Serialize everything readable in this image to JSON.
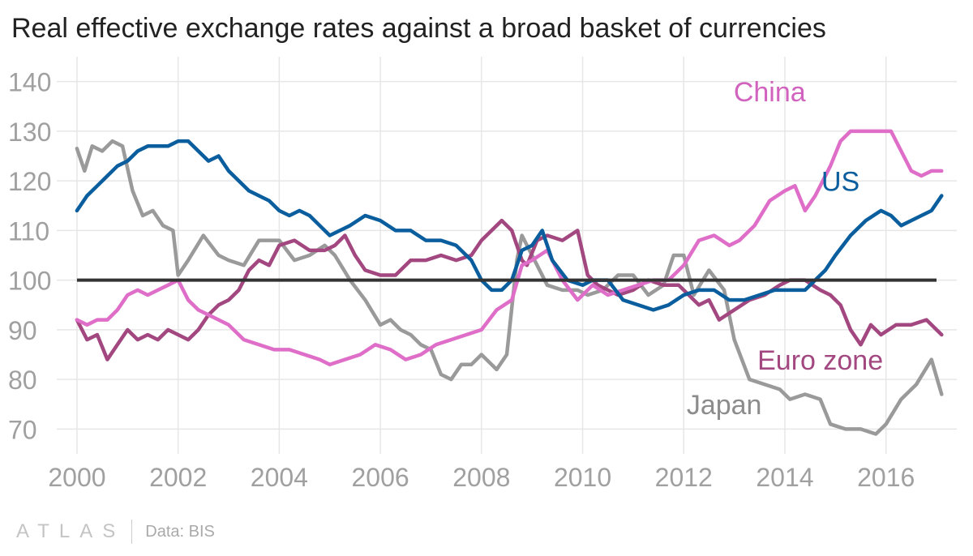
{
  "title": "Real effective exchange rates against a broad basket of currencies",
  "footer": {
    "brand": "ATLAS",
    "source": "Data: BIS"
  },
  "chart_data": {
    "type": "line",
    "title": "Real effective exchange rates against a broad basket of currencies",
    "xlabel": "",
    "ylabel": "",
    "xlim": [
      1999.6,
      2017.4
    ],
    "ylim": [
      65,
      145
    ],
    "x_ticks": [
      2000,
      2002,
      2004,
      2006,
      2008,
      2010,
      2012,
      2014,
      2016
    ],
    "x_tick_labels": [
      "2000",
      "2002",
      "2004",
      "2006",
      "2008",
      "2010",
      "2012",
      "2014",
      "2016"
    ],
    "y_ticks": [
      70,
      80,
      90,
      100,
      110,
      120,
      130,
      140
    ],
    "y_tick_labels": [
      "70",
      "80",
      "90",
      "100",
      "110",
      "120",
      "130",
      "140"
    ],
    "grid": true,
    "reference_line": {
      "y": 100,
      "color": "#333333"
    },
    "series": [
      {
        "name": "Japan",
        "label": "Japan",
        "color": "#9a9a9a",
        "label_color": "#8c8c8c",
        "x": [
          2000.0,
          2000.15,
          2000.3,
          2000.5,
          2000.7,
          2000.9,
          2001.1,
          2001.3,
          2001.5,
          2001.7,
          2001.9,
          2002.0,
          2002.2,
          2002.5,
          2002.8,
          2003.0,
          2003.3,
          2003.6,
          2003.9,
          2004.0,
          2004.3,
          2004.6,
          2004.9,
          2005.1,
          2005.4,
          2005.7,
          2006.0,
          2006.2,
          2006.4,
          2006.6,
          2006.8,
          2007.0,
          2007.2,
          2007.4,
          2007.6,
          2007.8,
          2008.0,
          2008.3,
          2008.5,
          2008.7,
          2008.8,
          2009.0,
          2009.3,
          2009.6,
          2009.9,
          2010.1,
          2010.4,
          2010.7,
          2011.0,
          2011.3,
          2011.6,
          2011.8,
          2012.0,
          2012.2,
          2012.5,
          2012.8,
          2013.0,
          2013.3,
          2013.6,
          2013.9,
          2014.1,
          2014.4,
          2014.7,
          2014.9,
          2015.2,
          2015.5,
          2015.8,
          2016.0,
          2016.3,
          2016.6,
          2016.9,
          2017.1
        ],
        "y": [
          126.5,
          122,
          127,
          126,
          128,
          127,
          118,
          113,
          114,
          111,
          110,
          101,
          104,
          109,
          105,
          104,
          103,
          108,
          108,
          108,
          104,
          105,
          107,
          105,
          100,
          96,
          91,
          92,
          90,
          89,
          87,
          86,
          81,
          80,
          83,
          83,
          85,
          82,
          85,
          104,
          109,
          105,
          99,
          98,
          98,
          97,
          98,
          101,
          101,
          97,
          99,
          105,
          105,
          97,
          102,
          98,
          88,
          80,
          79,
          78,
          76,
          77,
          76,
          71,
          70,
          70,
          69,
          71,
          76,
          79,
          84,
          77
        ]
      },
      {
        "name": "Euro zone",
        "label": "Euro zone",
        "color": "#a2477f",
        "label_color": "#a2477f",
        "x": [
          2000.0,
          2000.2,
          2000.4,
          2000.6,
          2000.8,
          2001.0,
          2001.2,
          2001.4,
          2001.6,
          2001.8,
          2002.0,
          2002.2,
          2002.4,
          2002.6,
          2002.8,
          2003.0,
          2003.2,
          2003.4,
          2003.6,
          2003.8,
          2004.0,
          2004.3,
          2004.6,
          2004.9,
          2005.1,
          2005.3,
          2005.5,
          2005.7,
          2006.0,
          2006.3,
          2006.6,
          2006.9,
          2007.2,
          2007.5,
          2007.8,
          2008.0,
          2008.2,
          2008.4,
          2008.6,
          2008.8,
          2008.9,
          2009.1,
          2009.3,
          2009.6,
          2009.9,
          2010.1,
          2010.3,
          2010.5,
          2010.7,
          2011.0,
          2011.3,
          2011.6,
          2011.9,
          2012.1,
          2012.3,
          2012.5,
          2012.7,
          2013.0,
          2013.3,
          2013.6,
          2013.9,
          2014.1,
          2014.4,
          2014.7,
          2014.9,
          2015.1,
          2015.3,
          2015.5,
          2015.7,
          2015.9,
          2016.2,
          2016.5,
          2016.8,
          2017.1
        ],
        "y": [
          92,
          88,
          89,
          84,
          87,
          90,
          88,
          89,
          88,
          90,
          89,
          88,
          90,
          93,
          95,
          96,
          98,
          102,
          104,
          103,
          107,
          108,
          106,
          106,
          107,
          109,
          105,
          102,
          101,
          101,
          104,
          104,
          105,
          104,
          105,
          108,
          110,
          112,
          110,
          104,
          103,
          108,
          109,
          108,
          110,
          101,
          99,
          98,
          97,
          98,
          100,
          99,
          99,
          97,
          95,
          96,
          92,
          94,
          96,
          97,
          99,
          100,
          100,
          98,
          97,
          95,
          90,
          87,
          91,
          89,
          91,
          91,
          92,
          89
        ]
      },
      {
        "name": "China",
        "label": "China",
        "color": "#de6ec8",
        "label_color": "#d163bf",
        "x": [
          2000.0,
          2000.2,
          2000.4,
          2000.6,
          2000.8,
          2001.0,
          2001.2,
          2001.4,
          2001.6,
          2001.8,
          2002.0,
          2002.2,
          2002.4,
          2002.6,
          2002.8,
          2003.0,
          2003.3,
          2003.6,
          2003.9,
          2004.2,
          2004.5,
          2004.8,
          2005.0,
          2005.3,
          2005.6,
          2005.9,
          2006.2,
          2006.5,
          2006.8,
          2007.1,
          2007.4,
          2007.7,
          2008.0,
          2008.3,
          2008.6,
          2008.8,
          2009.0,
          2009.3,
          2009.6,
          2009.9,
          2010.2,
          2010.5,
          2010.8,
          2011.1,
          2011.4,
          2011.7,
          2012.0,
          2012.3,
          2012.6,
          2012.9,
          2013.1,
          2013.4,
          2013.7,
          2014.0,
          2014.2,
          2014.4,
          2014.6,
          2014.9,
          2015.1,
          2015.3,
          2015.6,
          2015.9,
          2016.1,
          2016.3,
          2016.5,
          2016.7,
          2016.9,
          2017.1
        ],
        "y": [
          92,
          91,
          92,
          92,
          94,
          97,
          98,
          97,
          98,
          99,
          100,
          96,
          94,
          93,
          92,
          91,
          88,
          87,
          86,
          86,
          85,
          84,
          83,
          84,
          85,
          87,
          86,
          84,
          85,
          87,
          88,
          89,
          90,
          94,
          96,
          103,
          104,
          106,
          100,
          96,
          99,
          97,
          98,
          99,
          100,
          100,
          103,
          108,
          109,
          107,
          108,
          111,
          116,
          118,
          119,
          114,
          117,
          123,
          128,
          130,
          130,
          130,
          130,
          126,
          122,
          121,
          122,
          122
        ]
      },
      {
        "name": "US",
        "label": "US",
        "color": "#0b5e9d",
        "label_color": "#0b5e9d",
        "x": [
          2000.0,
          2000.2,
          2000.4,
          2000.6,
          2000.8,
          2001.0,
          2001.2,
          2001.4,
          2001.6,
          2001.8,
          2002.0,
          2002.2,
          2002.4,
          2002.6,
          2002.8,
          2003.0,
          2003.2,
          2003.4,
          2003.6,
          2003.8,
          2004.0,
          2004.2,
          2004.4,
          2004.6,
          2004.8,
          2005.0,
          2005.2,
          2005.4,
          2005.7,
          2006.0,
          2006.3,
          2006.6,
          2006.9,
          2007.2,
          2007.5,
          2007.8,
          2008.0,
          2008.2,
          2008.4,
          2008.6,
          2008.8,
          2009.0,
          2009.2,
          2009.4,
          2009.7,
          2010.0,
          2010.2,
          2010.5,
          2010.8,
          2011.1,
          2011.4,
          2011.7,
          2012.0,
          2012.3,
          2012.6,
          2012.9,
          2013.2,
          2013.5,
          2013.8,
          2014.1,
          2014.4,
          2014.6,
          2014.8,
          2015.0,
          2015.3,
          2015.6,
          2015.9,
          2016.1,
          2016.3,
          2016.5,
          2016.7,
          2016.9,
          2017.1
        ],
        "y": [
          114,
          117,
          119,
          121,
          123,
          124,
          126,
          127,
          127,
          127,
          128,
          128,
          126,
          124,
          125,
          122,
          120,
          118,
          117,
          116,
          114,
          113,
          114,
          113,
          111,
          109,
          110,
          111,
          113,
          112,
          110,
          110,
          108,
          108,
          107,
          104,
          100,
          98,
          98,
          100,
          106,
          107,
          110,
          104,
          100,
          99,
          100,
          100,
          96,
          95,
          94,
          95,
          97,
          98,
          98,
          96,
          96,
          97,
          98,
          98,
          98,
          100,
          102,
          105,
          109,
          112,
          114,
          113,
          111,
          112,
          113,
          114,
          117
        ]
      }
    ]
  }
}
